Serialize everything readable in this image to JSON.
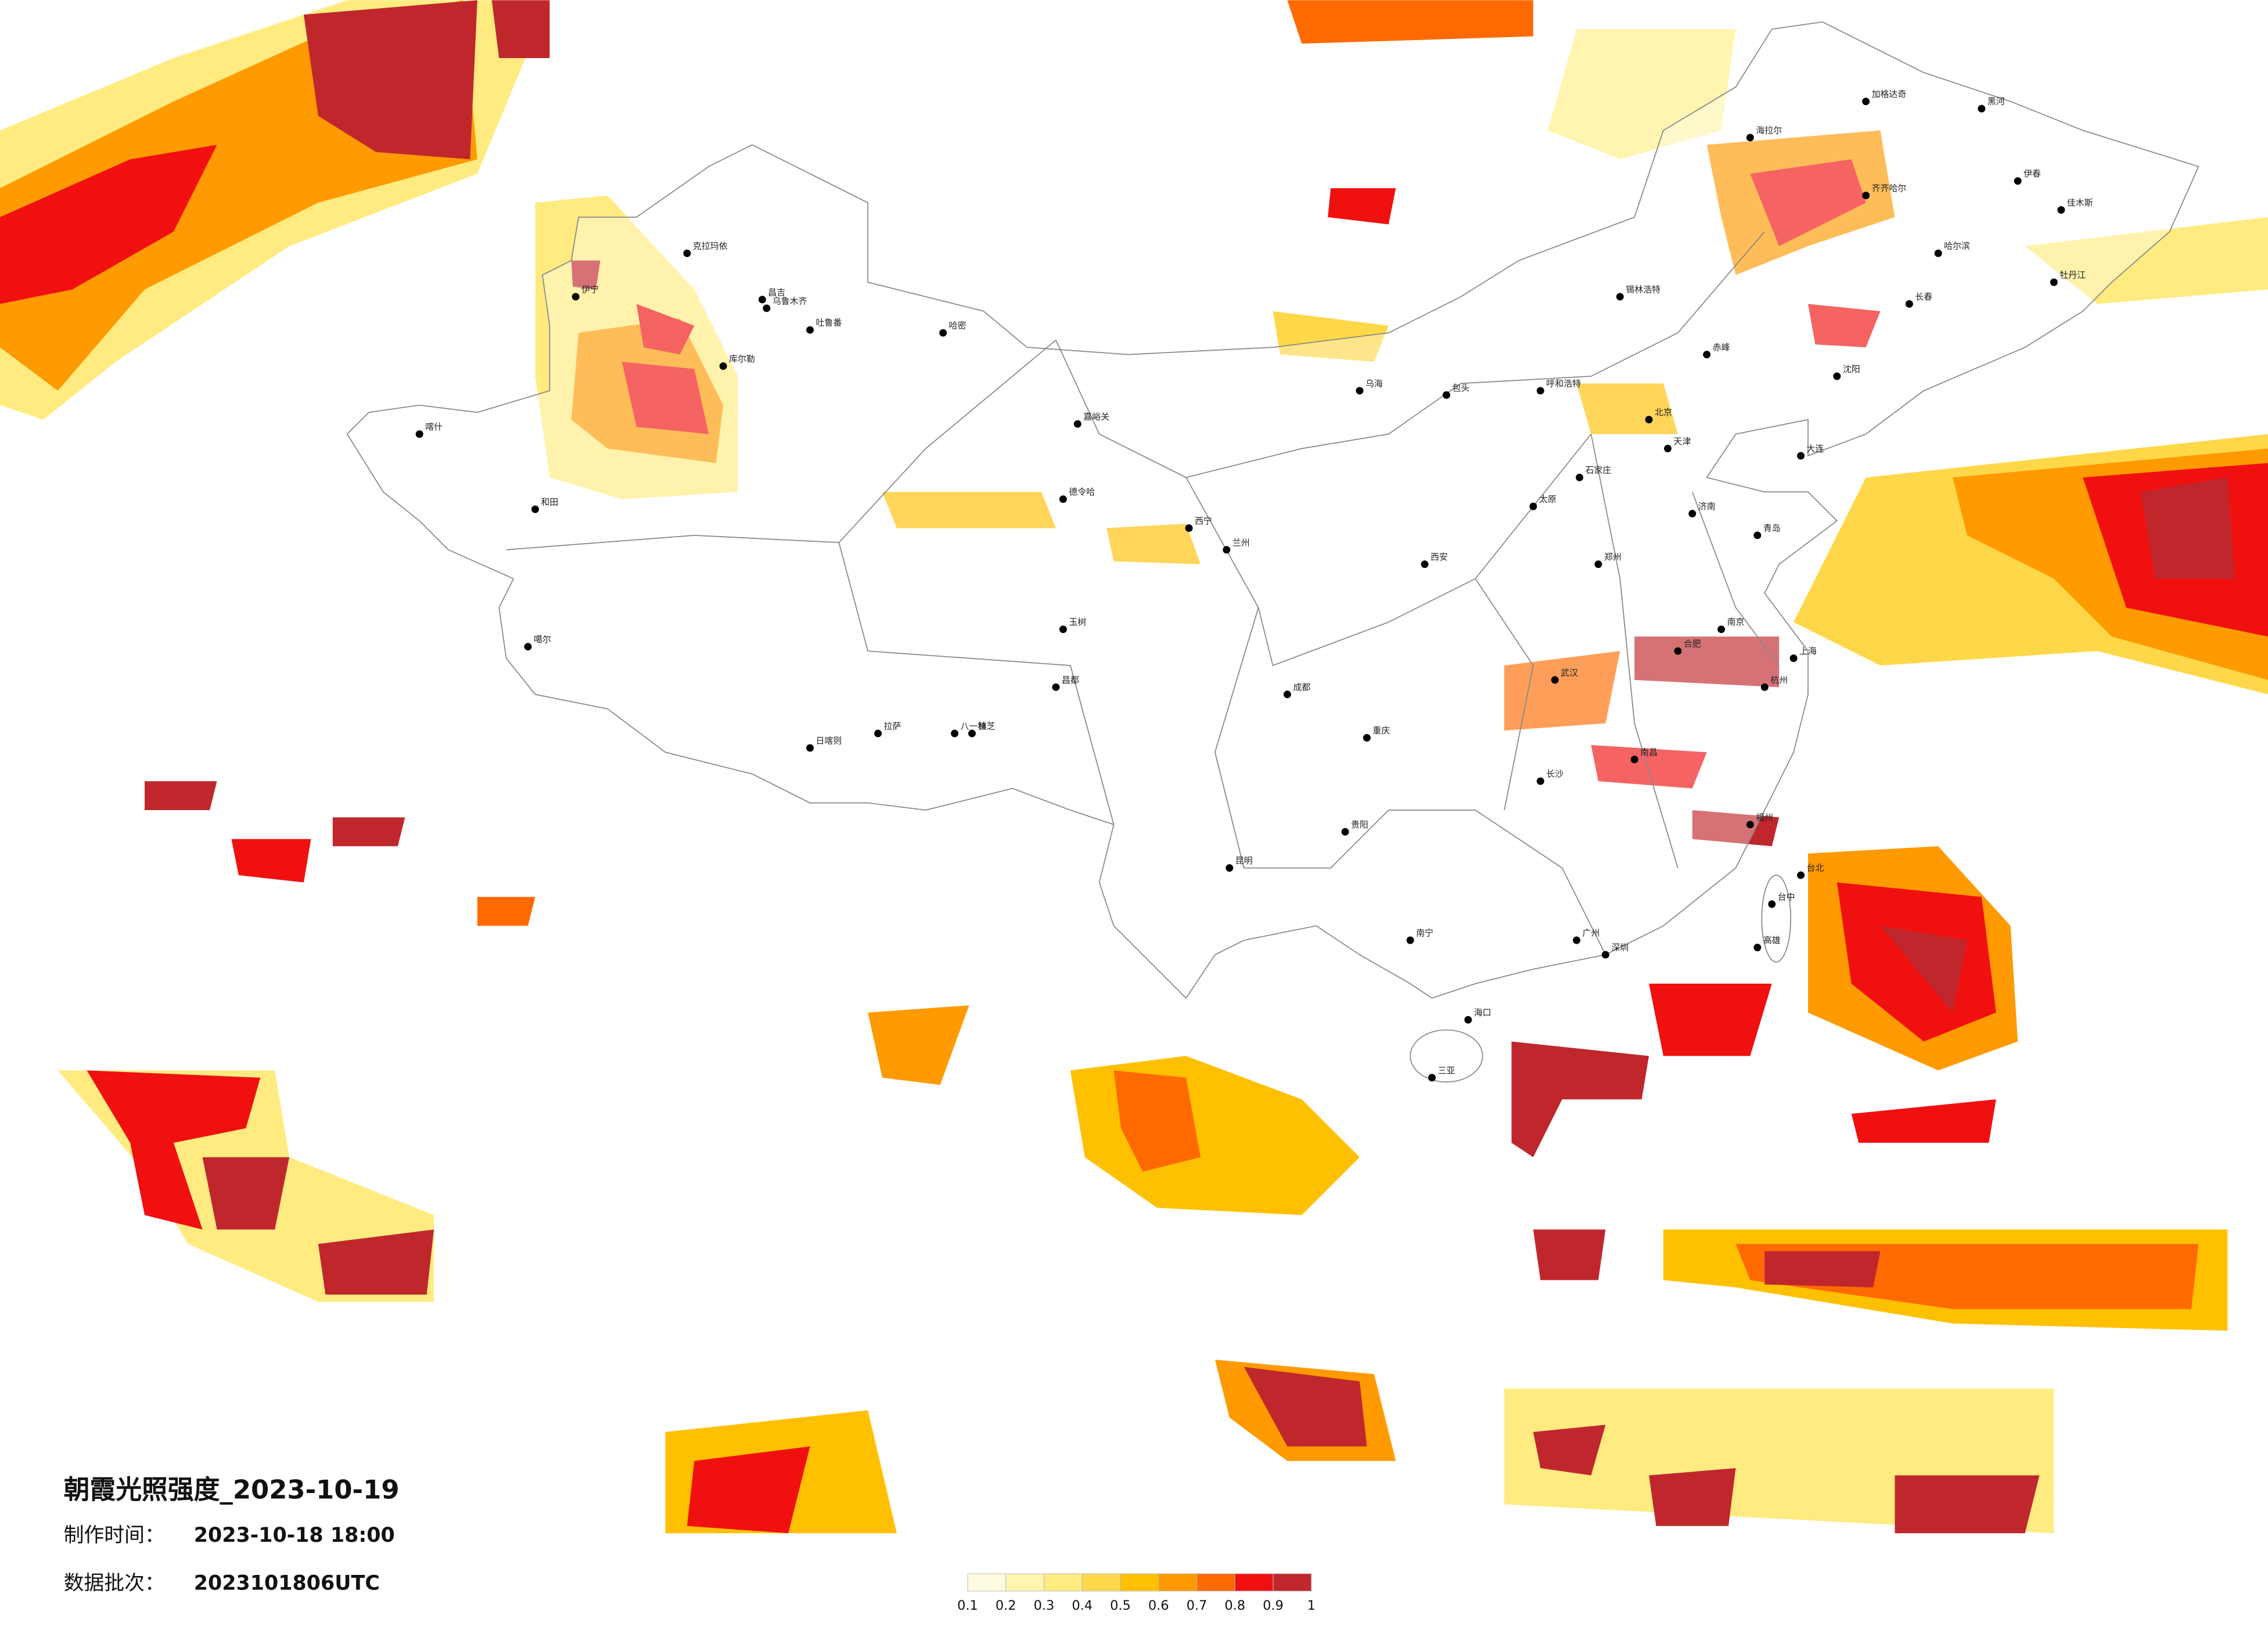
{
  "title": "朝霞光照强度_2023-10-19",
  "info": [
    {
      "label": "制作时间：",
      "value": "2023-10-18 18:00"
    },
    {
      "label": "数据批次：",
      "value": "2023101806UTC"
    }
  ],
  "legend": {
    "colors": [
      "#fffbe0",
      "#fff5b0",
      "#ffeb80",
      "#ffd84a",
      "#ffc000",
      "#ff9a00",
      "#ff6a00",
      "#f01010",
      "#c0272d"
    ],
    "ticks": [
      0.1,
      0.2,
      0.3,
      0.4,
      0.5,
      0.6,
      0.7,
      0.8,
      0.9,
      1
    ]
  },
  "cities": [
    "克拉玛依",
    "昌吉",
    "乌鲁木齐",
    "吐鲁番",
    "哈密",
    "库尔勒",
    "喀什",
    "和田",
    "伊宁",
    "噶尔",
    "日喀则",
    "拉萨",
    "林芝",
    "八一镇",
    "昌都",
    "玉树",
    "嘉峪关",
    "德令哈",
    "西宁",
    "兰州",
    "乌海",
    "呼和浩特",
    "包头",
    "北京",
    "天津",
    "石家庄",
    "太原",
    "济南",
    "青岛",
    "郑州",
    "西安",
    "南京",
    "上海",
    "杭州",
    "合肥",
    "武汉",
    "长沙",
    "南昌",
    "福州",
    "广州",
    "深圳",
    "南宁",
    "海口",
    "三亚",
    "贵阳",
    "昆明",
    "成都",
    "重庆",
    "沈阳",
    "长春",
    "哈尔滨",
    "齐齐哈尔",
    "海拉尔",
    "加格达奇",
    "黑河",
    "伊春",
    "佳木斯",
    "牡丹江",
    "大连",
    "台北",
    "台中",
    "高雄",
    "锡林浩特",
    "赤峰"
  ]
}
